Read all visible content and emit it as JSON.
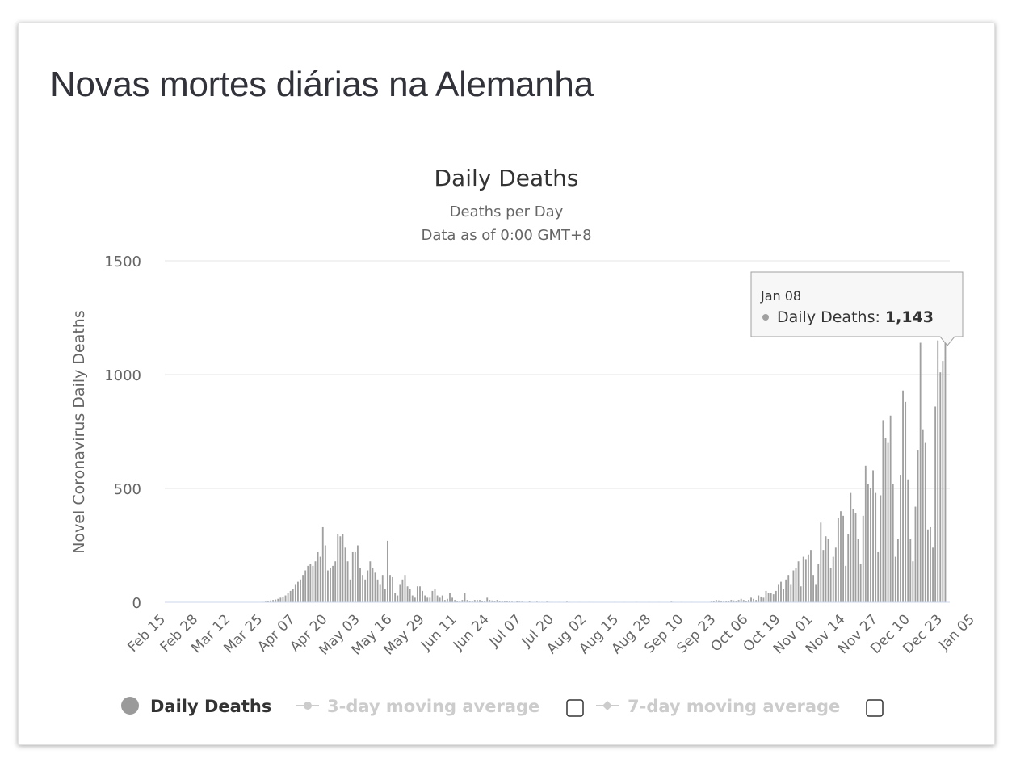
{
  "page": {
    "title": "Novas mortes diárias na Alemanha"
  },
  "chart_data": {
    "type": "bar",
    "title": "Daily Deaths",
    "subtitle_lines": [
      "Deaths per Day",
      "Data as of 0:00 GMT+8"
    ],
    "ylabel": "Novel Coronavirus Daily Deaths",
    "ylim": [
      0,
      1500
    ],
    "yticks": [
      "0",
      "500",
      "1000",
      "1500"
    ],
    "x_ticks": [
      "Feb 15",
      "Feb 28",
      "Mar 12",
      "Mar 25",
      "Apr 07",
      "Apr 20",
      "May 03",
      "May 16",
      "May 29",
      "Jun 11",
      "Jun 24",
      "Jul 07",
      "Jul 20",
      "Aug 02",
      "Aug 15",
      "Aug 28",
      "Sep 10",
      "Sep 23",
      "Oct 06",
      "Oct 19",
      "Nov 01",
      "Nov 14",
      "Nov 27",
      "Dec 10",
      "Dec 23",
      "Jan 05"
    ],
    "x_start": "Feb 15",
    "x_end": "Jan 08",
    "grid": true,
    "series": [
      {
        "name": "Daily Deaths",
        "color": "#a0a0a0",
        "values": [
          0,
          0,
          0,
          0,
          0,
          0,
          0,
          0,
          0,
          0,
          0,
          0,
          0,
          0,
          0,
          0,
          0,
          0,
          0,
          0,
          0,
          0,
          0,
          0,
          0,
          0,
          0,
          0,
          0,
          0,
          0,
          0,
          0,
          0,
          0,
          0,
          0,
          0,
          1,
          2,
          3,
          5,
          8,
          10,
          12,
          15,
          20,
          25,
          30,
          40,
          50,
          60,
          80,
          90,
          100,
          120,
          140,
          160,
          170,
          160,
          180,
          220,
          200,
          330,
          250,
          140,
          150,
          160,
          180,
          300,
          290,
          300,
          240,
          180,
          100,
          220,
          220,
          250,
          150,
          120,
          100,
          140,
          180,
          150,
          130,
          100,
          80,
          120,
          60,
          270,
          120,
          110,
          40,
          30,
          80,
          100,
          120,
          70,
          60,
          30,
          20,
          70,
          70,
          50,
          30,
          20,
          20,
          50,
          60,
          30,
          20,
          30,
          10,
          15,
          40,
          20,
          10,
          5,
          5,
          10,
          40,
          10,
          5,
          5,
          10,
          10,
          10,
          5,
          5,
          20,
          10,
          8,
          5,
          10,
          5,
          5,
          5,
          5,
          5,
          3,
          2,
          5,
          3,
          3,
          2,
          2,
          5,
          2,
          2,
          3,
          2,
          2,
          1,
          3,
          2,
          2,
          1,
          1,
          2,
          1,
          1,
          3,
          2,
          1,
          1,
          1,
          2,
          1,
          1,
          1,
          2,
          1,
          1,
          1,
          1,
          1,
          1,
          1,
          1,
          1,
          2,
          1,
          1,
          1,
          2,
          1,
          1,
          1,
          1,
          2,
          1,
          1,
          1,
          1,
          2,
          1,
          1,
          1,
          2,
          1,
          1,
          1,
          1,
          3,
          1,
          1,
          1,
          2,
          1,
          1,
          1,
          2,
          1,
          1,
          1,
          1,
          1,
          1,
          1,
          3,
          5,
          10,
          8,
          5,
          3,
          5,
          5,
          10,
          8,
          5,
          10,
          15,
          10,
          5,
          10,
          20,
          15,
          10,
          30,
          25,
          20,
          50,
          40,
          40,
          35,
          50,
          80,
          90,
          60,
          100,
          120,
          80,
          140,
          150,
          180,
          70,
          200,
          190,
          210,
          230,
          120,
          80,
          170,
          350,
          230,
          290,
          280,
          150,
          200,
          240,
          370,
          400,
          380,
          160,
          300,
          480,
          410,
          390,
          280,
          170,
          380,
          600,
          520,
          500,
          580,
          480,
          220,
          470,
          800,
          720,
          700,
          820,
          520,
          200,
          280,
          560,
          930,
          880,
          540,
          280,
          180,
          420,
          670,
          1140,
          760,
          700,
          320,
          330,
          240,
          860,
          1150,
          1010,
          1060,
          1143
        ]
      }
    ],
    "tooltip": {
      "date": "Jan 08",
      "label": "Daily Deaths",
      "value": "1,143"
    },
    "legend": {
      "position": "bottom",
      "items": [
        {
          "label": "Daily Deaths",
          "active": true,
          "color": "#9a9a9a"
        },
        {
          "label": "3-day moving average",
          "active": false,
          "color": "#cccccc"
        },
        {
          "label": "7-day moving average",
          "active": false,
          "color": "#cccccc"
        }
      ]
    }
  }
}
